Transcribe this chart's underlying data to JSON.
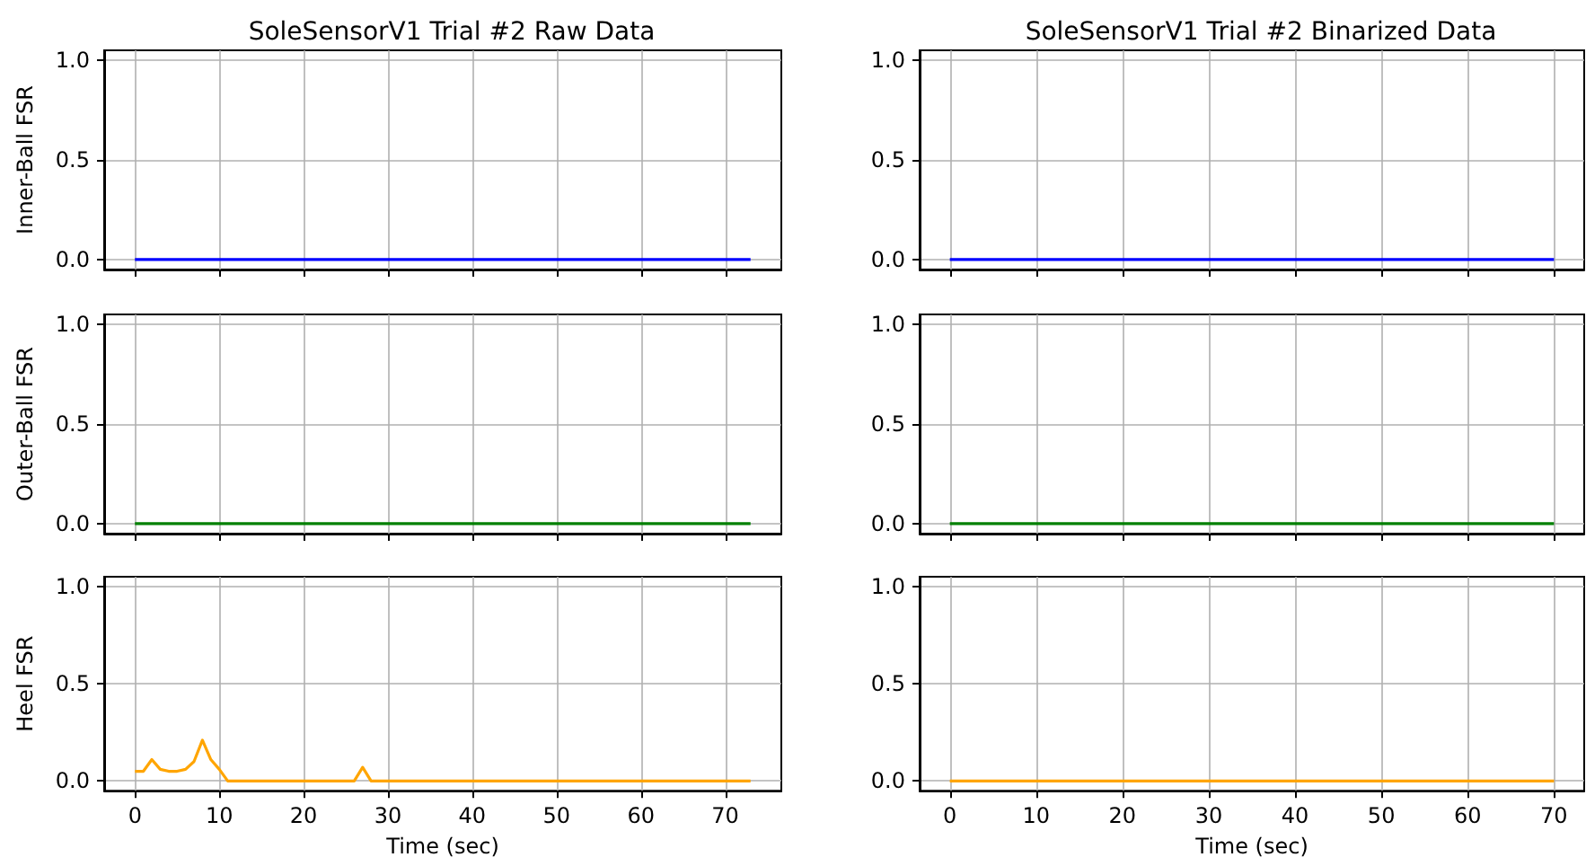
{
  "chart_data": [
    {
      "type": "line",
      "title": "SoleSensorV1 Trial #2 Raw Data",
      "ylabel": "Inner-Ball FSR",
      "x": [
        0,
        73
      ],
      "series": [
        {
          "color": "#0000ff",
          "values": [
            0,
            0
          ]
        }
      ],
      "xlim": [
        -3.65,
        76.65
      ],
      "ylim": [
        -0.05,
        1.05
      ],
      "xticks": [
        0,
        10,
        20,
        30,
        40,
        50,
        60,
        70
      ],
      "yticks": [
        {
          "value": 0,
          "label": "0.0"
        },
        {
          "value": 0.5,
          "label": "0.5"
        },
        {
          "value": 1,
          "label": "1.0"
        }
      ],
      "tick_labels": "y",
      "grid": true
    },
    {
      "type": "line",
      "title": "SoleSensorV1 Trial #2 Binarized Data",
      "x": [
        0,
        70
      ],
      "series": [
        {
          "color": "#0000ff",
          "values": [
            0,
            0
          ]
        }
      ],
      "xlim": [
        -3.5,
        73.5
      ],
      "ylim": [
        -0.05,
        1.05
      ],
      "xticks": [
        0,
        10,
        20,
        30,
        40,
        50,
        60,
        70
      ],
      "yticks": [
        {
          "value": 0,
          "label": "0.0"
        },
        {
          "value": 0.5,
          "label": "0.5"
        },
        {
          "value": 1,
          "label": "1.0"
        }
      ],
      "tick_labels": "y",
      "grid": true
    },
    {
      "type": "line",
      "ylabel": "Outer-Ball FSR",
      "x": [
        0,
        73
      ],
      "series": [
        {
          "color": "#008000",
          "values": [
            0,
            0
          ]
        }
      ],
      "xlim": [
        -3.65,
        76.65
      ],
      "ylim": [
        -0.05,
        1.05
      ],
      "xticks": [
        0,
        10,
        20,
        30,
        40,
        50,
        60,
        70
      ],
      "yticks": [
        {
          "value": 0,
          "label": "0.0"
        },
        {
          "value": 0.5,
          "label": "0.5"
        },
        {
          "value": 1,
          "label": "1.0"
        }
      ],
      "tick_labels": "y",
      "grid": true
    },
    {
      "type": "line",
      "x": [
        0,
        70
      ],
      "series": [
        {
          "color": "#008000",
          "values": [
            0,
            0
          ]
        }
      ],
      "xlim": [
        -3.5,
        73.5
      ],
      "ylim": [
        -0.05,
        1.05
      ],
      "xticks": [
        0,
        10,
        20,
        30,
        40,
        50,
        60,
        70
      ],
      "yticks": [
        {
          "value": 0,
          "label": "0.0"
        },
        {
          "value": 0.5,
          "label": "0.5"
        },
        {
          "value": 1,
          "label": "1.0"
        }
      ],
      "tick_labels": "y",
      "grid": true
    },
    {
      "type": "line",
      "ylabel": "Heel FSR",
      "xlabel": "Time (sec)",
      "x": [
        0,
        1,
        2,
        3,
        4,
        5,
        6,
        7,
        8,
        9,
        10,
        11,
        26,
        27,
        28,
        73
      ],
      "series": [
        {
          "color": "#ffa500",
          "values": [
            0.05,
            0.05,
            0.11,
            0.06,
            0.05,
            0.05,
            0.06,
            0.1,
            0.21,
            0.11,
            0.06,
            0,
            0,
            0.07,
            0,
            0
          ]
        }
      ],
      "xlim": [
        -3.65,
        76.65
      ],
      "ylim": [
        -0.05,
        1.05
      ],
      "xticks": [
        0,
        10,
        20,
        30,
        40,
        50,
        60,
        70
      ],
      "yticks": [
        {
          "value": 0,
          "label": "0.0"
        },
        {
          "value": 0.5,
          "label": "0.5"
        },
        {
          "value": 1,
          "label": "1.0"
        }
      ],
      "grid": true
    },
    {
      "type": "line",
      "xlabel": "Time (sec)",
      "x": [
        0,
        70
      ],
      "series": [
        {
          "color": "#ffa500",
          "values": [
            0,
            0
          ]
        }
      ],
      "xlim": [
        -3.5,
        73.5
      ],
      "ylim": [
        -0.05,
        1.05
      ],
      "xticks": [
        0,
        10,
        20,
        30,
        40,
        50,
        60,
        70
      ],
      "yticks": [
        {
          "value": 0,
          "label": "0.0"
        },
        {
          "value": 0.5,
          "label": "0.5"
        },
        {
          "value": 1,
          "label": "1.0"
        }
      ],
      "grid": true
    }
  ]
}
